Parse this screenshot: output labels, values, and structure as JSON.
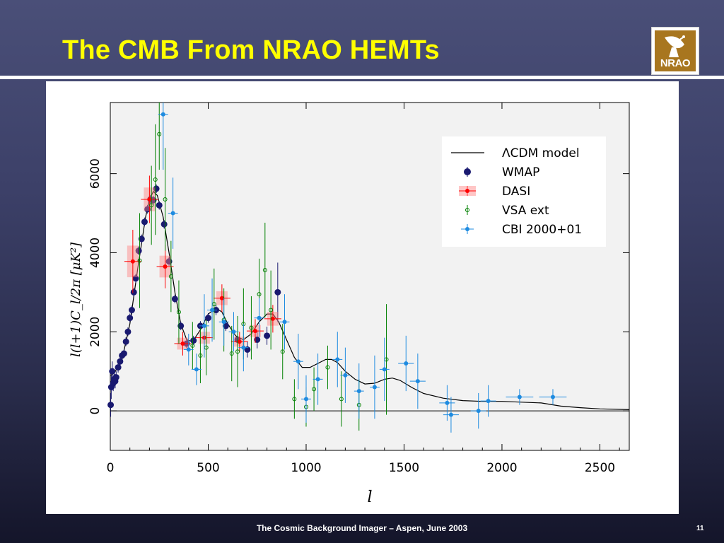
{
  "slide": {
    "title": "The CMB From NRAO HEMTs",
    "footer": "The Cosmic Background Imager – Aspen, June 2003",
    "page_number": "11",
    "logo_text": "NRAO",
    "colors": {
      "title": "#ffff00",
      "background": "#3c4068",
      "logo": "#a8761f"
    }
  },
  "chart_data": {
    "type": "scatter",
    "xlabel": "l",
    "ylabel": "l(l+1)C_l/2π [μK²]",
    "xlim": [
      0,
      2650
    ],
    "ylim": [
      -1000,
      7800
    ],
    "x_ticks": [
      "0",
      "500",
      "1000",
      "1500",
      "2000",
      "2500"
    ],
    "y_ticks": [
      "0",
      "2000",
      "4000",
      "6000"
    ],
    "legend_position": "top-right",
    "legend": [
      "ΛCDM model",
      "WMAP",
      "DASI",
      "VSA ext",
      "CBI 2000+01"
    ],
    "model_curve": {
      "name": "ΛCDM model",
      "color": "#000000",
      "x": [
        2,
        20,
        60,
        100,
        140,
        180,
        200,
        220,
        240,
        270,
        300,
        330,
        360,
        390,
        420,
        460,
        500,
        540,
        570,
        600,
        640,
        680,
        720,
        760,
        800,
        830,
        860,
        900,
        940,
        980,
        1020,
        1060,
        1100,
        1130,
        1160,
        1200,
        1250,
        1300,
        1350,
        1400,
        1440,
        1480,
        1540,
        1600,
        1700,
        1800,
        1900,
        2000,
        2100,
        2200,
        2300,
        2400,
        2500,
        2650
      ],
      "y": [
        900,
        950,
        1300,
        2200,
        3600,
        4900,
        5350,
        5550,
        5450,
        4900,
        4000,
        3000,
        2200,
        1800,
        1750,
        2050,
        2450,
        2600,
        2500,
        2200,
        1900,
        1800,
        1950,
        2250,
        2450,
        2450,
        2250,
        1800,
        1350,
        1100,
        1100,
        1200,
        1300,
        1300,
        1220,
        1000,
        800,
        680,
        700,
        800,
        830,
        770,
        590,
        440,
        320,
        260,
        240,
        240,
        220,
        200,
        120,
        80,
        50,
        30
      ]
    },
    "series": [
      {
        "name": "WMAP",
        "marker": "filled-hexagon",
        "color": "#191970",
        "points": [
          [
            2,
            150,
            300
          ],
          [
            5,
            600,
            300
          ],
          [
            10,
            1000,
            250
          ],
          [
            15,
            700,
            200
          ],
          [
            20,
            800,
            200
          ],
          [
            25,
            750,
            180
          ],
          [
            30,
            850,
            150
          ],
          [
            40,
            1100,
            130
          ],
          [
            50,
            1250,
            120
          ],
          [
            60,
            1400,
            120
          ],
          [
            70,
            1450,
            110
          ],
          [
            80,
            1750,
            110
          ],
          [
            90,
            2000,
            110
          ],
          [
            100,
            2350,
            110
          ],
          [
            110,
            2550,
            110
          ],
          [
            120,
            3000,
            110
          ],
          [
            130,
            3350,
            110
          ],
          [
            145,
            4050,
            110
          ],
          [
            160,
            4350,
            110
          ],
          [
            175,
            4780,
            110
          ],
          [
            190,
            5100,
            110
          ],
          [
            205,
            5350,
            110
          ],
          [
            220,
            5330,
            110
          ],
          [
            235,
            5620,
            110
          ],
          [
            250,
            5200,
            110
          ],
          [
            275,
            4720,
            110
          ],
          [
            300,
            3780,
            110
          ],
          [
            330,
            2830,
            110
          ],
          [
            360,
            2150,
            110
          ],
          [
            390,
            1700,
            110
          ],
          [
            425,
            1780,
            120
          ],
          [
            460,
            2150,
            120
          ],
          [
            500,
            2350,
            120
          ],
          [
            540,
            2550,
            130
          ],
          [
            590,
            2150,
            130
          ],
          [
            650,
            1800,
            140
          ],
          [
            700,
            1550,
            200
          ],
          [
            750,
            1800,
            220
          ],
          [
            800,
            1900,
            230
          ],
          [
            855,
            3000,
            750
          ]
        ]
      },
      {
        "name": "DASI",
        "marker": "filled-circle",
        "color": "#ff0000",
        "points": [
          [
            115,
            3780,
            800
          ],
          [
            200,
            5350,
            600
          ],
          [
            280,
            3650,
            550
          ],
          [
            370,
            1700,
            300
          ],
          [
            480,
            1850,
            300
          ],
          [
            570,
            2850,
            350
          ],
          [
            660,
            1750,
            250
          ],
          [
            740,
            2020,
            300
          ],
          [
            830,
            2330,
            350
          ]
        ]
      },
      {
        "name": "VSA ext",
        "marker": "open-circle",
        "color": "#008000",
        "points": [
          [
            150,
            3800,
            1200
          ],
          [
            210,
            5200,
            1000
          ],
          [
            230,
            5850,
            1400
          ],
          [
            250,
            7000,
            900
          ],
          [
            280,
            5350,
            1300
          ],
          [
            310,
            3400,
            900
          ],
          [
            350,
            2500,
            800
          ],
          [
            420,
            1650,
            600
          ],
          [
            460,
            1400,
            700
          ],
          [
            490,
            1600,
            700
          ],
          [
            530,
            2700,
            900
          ],
          [
            580,
            2300,
            800
          ],
          [
            620,
            1450,
            700
          ],
          [
            650,
            1500,
            900
          ],
          [
            680,
            2200,
            900
          ],
          [
            720,
            2100,
            800
          ],
          [
            760,
            2950,
            900
          ],
          [
            790,
            3560,
            1200
          ],
          [
            820,
            2550,
            1000
          ],
          [
            880,
            1500,
            700
          ],
          [
            940,
            300,
            500
          ],
          [
            1000,
            100,
            500
          ],
          [
            1040,
            550,
            550
          ],
          [
            1110,
            1100,
            550
          ],
          [
            1180,
            300,
            700
          ],
          [
            1270,
            150,
            650
          ],
          [
            1410,
            1300,
            1400
          ]
        ]
      },
      {
        "name": "CBI 2000+01",
        "marker": "filled-circle",
        "color": "#1e8be0",
        "points": [
          [
            270,
            7500,
            1400
          ],
          [
            320,
            5000,
            900
          ],
          [
            400,
            1550,
            400
          ],
          [
            440,
            1050,
            400
          ],
          [
            480,
            2150,
            800
          ],
          [
            520,
            2550,
            800
          ],
          [
            580,
            2250,
            600
          ],
          [
            630,
            2000,
            500
          ],
          [
            680,
            1600,
            600
          ],
          [
            760,
            2350,
            500
          ],
          [
            890,
            2250,
            700
          ],
          [
            960,
            1250,
            700
          ],
          [
            1000,
            300,
            600
          ],
          [
            1060,
            800,
            650
          ],
          [
            1160,
            1300,
            700
          ],
          [
            1200,
            900,
            700
          ],
          [
            1270,
            500,
            700
          ],
          [
            1350,
            600,
            800
          ],
          [
            1400,
            1050,
            800
          ],
          [
            1510,
            1200,
            700
          ],
          [
            1570,
            750,
            700
          ],
          [
            1720,
            200,
            450
          ],
          [
            1740,
            -100,
            450
          ],
          [
            1880,
            0,
            450
          ],
          [
            1930,
            250,
            400
          ],
          [
            2090,
            350,
            200
          ],
          [
            2260,
            350,
            200
          ]
        ]
      }
    ]
  }
}
